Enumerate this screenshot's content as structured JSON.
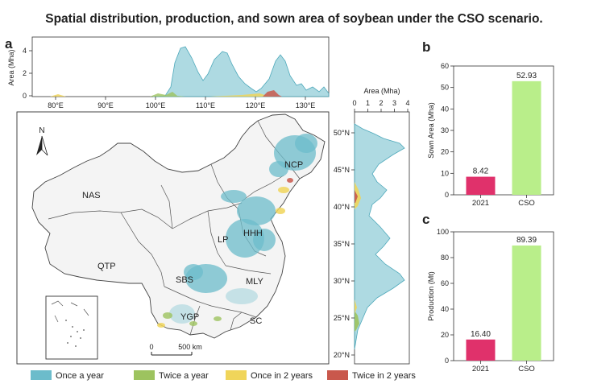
{
  "title": "Spatial distribution, production, and sown area of soybean under the CSO  scenario.",
  "panels": {
    "a": "a",
    "b": "b",
    "c": "c"
  },
  "map": {
    "regions": [
      "NAS",
      "NCP",
      "QTP",
      "LP",
      "HHH",
      "SBS",
      "MLY",
      "YGP",
      "SC"
    ],
    "north_label": "N",
    "scale_zero": "0",
    "scale_label": "500 km",
    "legend": [
      {
        "label": "Once a year",
        "color": "#6cbccb"
      },
      {
        "label": "Twice a year",
        "color": "#9dc35f"
      },
      {
        "label": "Once in 2 years",
        "color": "#f0d55a"
      },
      {
        "label": "Twice in 2 years",
        "color": "#c9584c"
      }
    ]
  },
  "top_profile": {
    "ylabel": "Area (Mha)",
    "yticks": [
      "0",
      "2",
      "4"
    ],
    "xticks": [
      "80°E",
      "90°E",
      "100°E",
      "110°E",
      "120°E",
      "130°E"
    ]
  },
  "side_profile": {
    "xlabel": "Area (Mha)",
    "xticks": [
      "0",
      "1",
      "2",
      "3",
      "4"
    ],
    "yticks": [
      "20°N",
      "25°N",
      "30°N",
      "35°N",
      "40°N",
      "45°N",
      "50°N"
    ]
  },
  "chart_data": [
    {
      "type": "bar",
      "panel": "b",
      "categories": [
        "2021",
        "CSO"
      ],
      "values": [
        8.42,
        52.93
      ],
      "value_labels": [
        "8.42",
        "52.93"
      ],
      "colors": [
        "#e0316b",
        "#b9ee8a"
      ],
      "ylabel": "Sown Area (Mha)",
      "ylim": [
        0,
        60
      ],
      "yticks": [
        "0",
        "10",
        "20",
        "30",
        "40",
        "50",
        "60"
      ]
    },
    {
      "type": "bar",
      "panel": "c",
      "categories": [
        "2021",
        "CSO"
      ],
      "values": [
        16.4,
        89.39
      ],
      "value_labels": [
        "16.40",
        "89.39"
      ],
      "colors": [
        "#e0316b",
        "#b9ee8a"
      ],
      "ylabel": "Production (Mt)",
      "ylim": [
        0,
        100
      ],
      "yticks": [
        "0",
        "20",
        "40",
        "60",
        "80",
        "100"
      ]
    }
  ]
}
